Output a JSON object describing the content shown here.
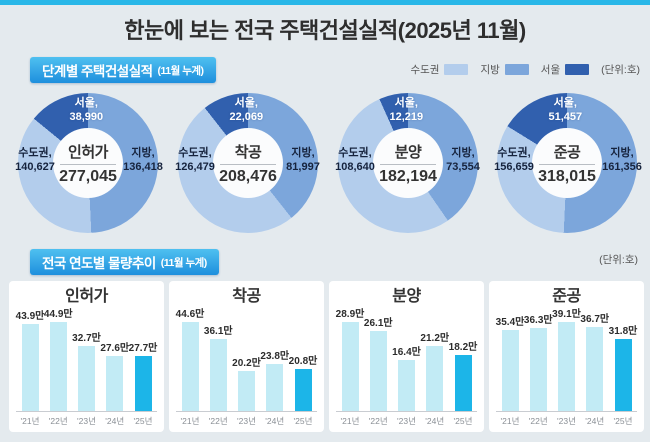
{
  "title": "한눈에 보는 전국 주택건설실적(2025년 11월)",
  "unit_note": "(단위:호)",
  "sections": {
    "stage": {
      "header": "단계별 주택건설실적",
      "header_sub": "(11월 누계)"
    },
    "trend": {
      "header": "전국 연도별 물량추이",
      "header_sub": "(11월 누계)"
    }
  },
  "legend": {
    "items": [
      {
        "label": "수도권",
        "color": "#b3cdec"
      },
      {
        "label": "지방",
        "color": "#7ca6db"
      },
      {
        "label": "서울",
        "color": "#3160ae"
      }
    ],
    "unit": "(단위:호)"
  },
  "colors": {
    "capital": "#b3cdec",
    "regional": "#7ca6db",
    "seoul": "#3160ae",
    "bar": "#c2ebf5",
    "bar_highlight": "#1cb5e8",
    "accent_strip": "#29b7e8"
  },
  "chart_data": [
    {
      "type": "pie",
      "title": "인허가",
      "total": 277045,
      "total_text": "277,045",
      "slices": [
        {
          "name": "수도권",
          "value": 140627,
          "text": "140,627"
        },
        {
          "name": "서울",
          "value": 38990,
          "text": "38,990",
          "note": "subset of 수도권"
        },
        {
          "name": "지방",
          "value": 136418,
          "text": "136,418"
        }
      ]
    },
    {
      "type": "pie",
      "title": "착공",
      "total": 208476,
      "total_text": "208,476",
      "slices": [
        {
          "name": "수도권",
          "value": 126479,
          "text": "126,479"
        },
        {
          "name": "서울",
          "value": 22069,
          "text": "22,069",
          "note": "subset of 수도권"
        },
        {
          "name": "지방",
          "value": 81997,
          "text": "81,997"
        }
      ]
    },
    {
      "type": "pie",
      "title": "분양",
      "total": 182194,
      "total_text": "182,194",
      "slices": [
        {
          "name": "수도권",
          "value": 108640,
          "text": "108,640"
        },
        {
          "name": "서울",
          "value": 12219,
          "text": "12,219",
          "note": "subset of 수도권"
        },
        {
          "name": "지방",
          "value": 73554,
          "text": "73,554"
        }
      ]
    },
    {
      "type": "pie",
      "title": "준공",
      "total": 318015,
      "total_text": "318,015",
      "slices": [
        {
          "name": "수도권",
          "value": 156659,
          "text": "156,659"
        },
        {
          "name": "서울",
          "value": 51457,
          "text": "51,457",
          "note": "subset of 수도권"
        },
        {
          "name": "지방",
          "value": 161356,
          "text": "161,356"
        }
      ]
    },
    {
      "type": "bar",
      "title": "인허가",
      "categories": [
        "'21년",
        "'22년",
        "'23년",
        "'24년",
        "'25년"
      ],
      "values": [
        43.9,
        44.9,
        32.7,
        27.6,
        27.7
      ],
      "labels": [
        "43.9만",
        "44.9만",
        "32.7만",
        "27.6만",
        "27.7만"
      ],
      "highlight_index": 4,
      "ylabel": "",
      "xlabel": ""
    },
    {
      "type": "bar",
      "title": "착공",
      "categories": [
        "'21년",
        "'22년",
        "'23년",
        "'24년",
        "'25년"
      ],
      "values": [
        44.6,
        36.1,
        20.2,
        23.8,
        20.8
      ],
      "labels": [
        "44.6만",
        "36.1만",
        "20.2만",
        "23.8만",
        "20.8만"
      ],
      "highlight_index": 4,
      "ylabel": "",
      "xlabel": ""
    },
    {
      "type": "bar",
      "title": "분양",
      "categories": [
        "'21년",
        "'22년",
        "'23년",
        "'24년",
        "'25년"
      ],
      "values": [
        28.9,
        26.1,
        16.4,
        21.2,
        18.2
      ],
      "labels": [
        "28.9만",
        "26.1만",
        "16.4만",
        "21.2만",
        "18.2만"
      ],
      "highlight_index": 4,
      "ylabel": "",
      "xlabel": ""
    },
    {
      "type": "bar",
      "title": "준공",
      "categories": [
        "'21년",
        "'22년",
        "'23년",
        "'24년",
        "'25년"
      ],
      "values": [
        35.4,
        36.3,
        39.1,
        36.7,
        31.8
      ],
      "labels": [
        "35.4만",
        "36.3만",
        "39.1만",
        "36.7만",
        "31.8만"
      ],
      "highlight_index": 4,
      "ylabel": "",
      "xlabel": ""
    }
  ]
}
